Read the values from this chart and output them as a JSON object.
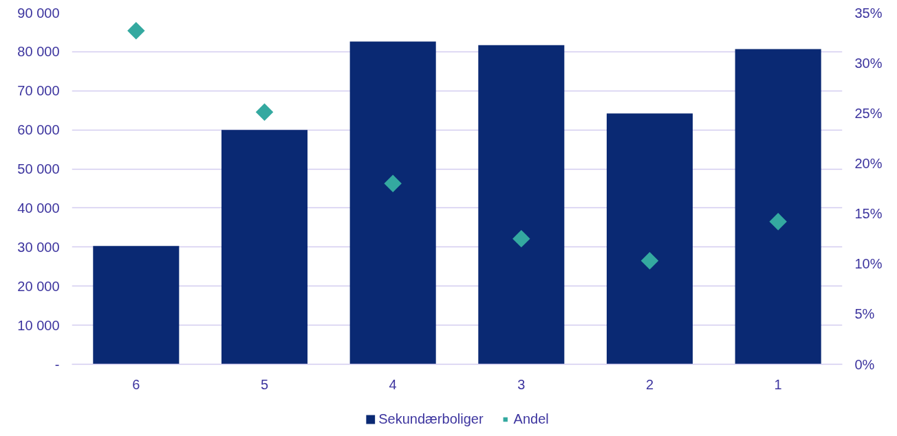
{
  "chart_data": {
    "type": "bar",
    "categories": [
      "6",
      "5",
      "4",
      "3",
      "2",
      "1"
    ],
    "series": [
      {
        "name": "Sekundærboliger",
        "color": "#0a2973",
        "values": [
          30300,
          60000,
          82600,
          81700,
          64200,
          80700
        ]
      },
      {
        "name": "Andel",
        "type": "scatter",
        "axis": "y2",
        "color": "#34a9a0",
        "x": [
          "6",
          "5",
          "4",
          "3",
          "2",
          "1"
        ],
        "values": [
          33.2,
          25.1,
          18.0,
          12.5,
          10.3,
          14.2
        ]
      }
    ],
    "ylim": [
      0,
      90000
    ],
    "yticks": [
      {
        "value": 0,
        "label": "-"
      },
      {
        "value": 10000,
        "label": "10 000"
      },
      {
        "value": 20000,
        "label": "20 000"
      },
      {
        "value": 30000,
        "label": "30 000"
      },
      {
        "value": 40000,
        "label": "40 000"
      },
      {
        "value": 50000,
        "label": "50 000"
      },
      {
        "value": 60000,
        "label": "60 000"
      },
      {
        "value": 70000,
        "label": "70 000"
      },
      {
        "value": 80000,
        "label": "80 000"
      },
      {
        "value": 90000,
        "label": "90 000"
      }
    ],
    "y2lim": [
      0,
      35
    ],
    "y2ticks": [
      {
        "value": 0,
        "label": "0%"
      },
      {
        "value": 5,
        "label": "5%"
      },
      {
        "value": 10,
        "label": "10%"
      },
      {
        "value": 15,
        "label": "15%"
      },
      {
        "value": 20,
        "label": "20%"
      },
      {
        "value": 25,
        "label": "25%"
      },
      {
        "value": 30,
        "label": "30%"
      },
      {
        "value": 35,
        "label": "35%"
      }
    ],
    "grid": "y",
    "legend": "bottom",
    "marker": "diamond"
  }
}
